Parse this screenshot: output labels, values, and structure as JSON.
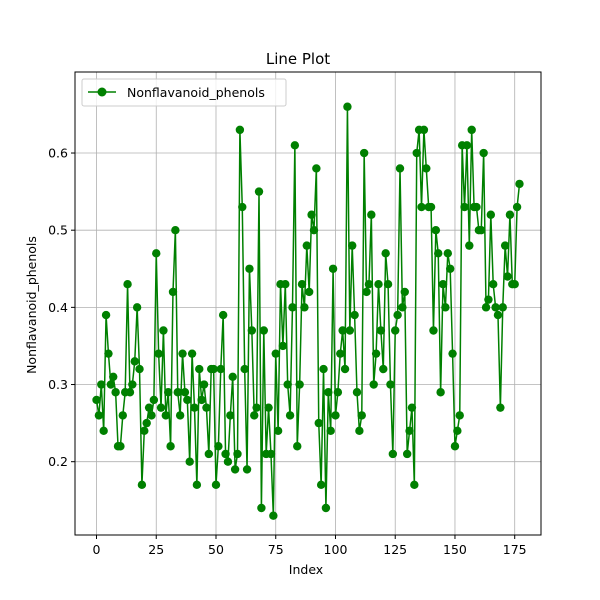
{
  "chart_data": {
    "type": "line",
    "title": "Line Plot",
    "xlabel": "Index",
    "ylabel": "Nonflavanoid_phenols",
    "xlim": [
      -9,
      186
    ],
    "ylim": [
      0.105,
      0.705
    ],
    "x_ticks": [
      0,
      25,
      50,
      75,
      100,
      125,
      150,
      175
    ],
    "y_ticks": [
      0.2,
      0.3,
      0.4,
      0.5,
      0.6
    ],
    "y_tick_labels": [
      "0.2",
      "0.3",
      "0.4",
      "0.5",
      "0.6"
    ],
    "grid": true,
    "legend_position": "upper-left",
    "series": [
      {
        "name": "Nonflavanoid_phenols",
        "color": "#008000",
        "marker": "circle",
        "x_start": 0,
        "values": [
          0.28,
          0.26,
          0.3,
          0.24,
          0.39,
          0.34,
          0.3,
          0.31,
          0.29,
          0.22,
          0.22,
          0.26,
          0.29,
          0.43,
          0.29,
          0.3,
          0.33,
          0.4,
          0.32,
          0.17,
          0.24,
          0.25,
          0.27,
          0.26,
          0.28,
          0.47,
          0.34,
          0.27,
          0.37,
          0.26,
          0.29,
          0.22,
          0.42,
          0.5,
          0.29,
          0.26,
          0.34,
          0.29,
          0.28,
          0.2,
          0.34,
          0.27,
          0.17,
          0.32,
          0.28,
          0.3,
          0.27,
          0.21,
          0.32,
          0.32,
          0.17,
          0.22,
          0.32,
          0.39,
          0.21,
          0.2,
          0.26,
          0.31,
          0.19,
          0.21,
          0.63,
          0.53,
          0.32,
          0.19,
          0.45,
          0.37,
          0.26,
          0.27,
          0.55,
          0.14,
          0.37,
          0.21,
          0.27,
          0.21,
          0.13,
          0.34,
          0.24,
          0.43,
          0.35,
          0.43,
          0.3,
          0.26,
          0.4,
          0.61,
          0.22,
          0.3,
          0.43,
          0.4,
          0.48,
          0.42,
          0.52,
          0.5,
          0.58,
          0.25,
          0.17,
          0.32,
          0.14,
          0.29,
          0.24,
          0.45,
          0.26,
          0.29,
          0.34,
          0.37,
          0.32,
          0.66,
          0.37,
          0.48,
          0.39,
          0.29,
          0.24,
          0.26,
          0.6,
          0.42,
          0.43,
          0.52,
          0.3,
          0.34,
          0.43,
          0.37,
          0.32,
          0.47,
          0.43,
          0.3,
          0.21,
          0.37,
          0.39,
          0.58,
          0.4,
          0.42,
          0.21,
          0.24,
          0.27,
          0.17,
          0.6,
          0.63,
          0.53,
          0.63,
          0.58,
          0.53,
          0.53,
          0.37,
          0.5,
          0.47,
          0.29,
          0.43,
          0.4,
          0.47,
          0.45,
          0.34,
          0.22,
          0.24,
          0.26,
          0.61,
          0.53,
          0.61,
          0.48,
          0.63,
          0.53,
          0.53,
          0.5,
          0.5,
          0.6,
          0.4,
          0.41,
          0.52,
          0.43,
          0.4,
          0.39,
          0.27,
          0.4,
          0.48,
          0.44,
          0.52,
          0.43,
          0.43,
          0.53,
          0.56
        ]
      }
    ]
  }
}
